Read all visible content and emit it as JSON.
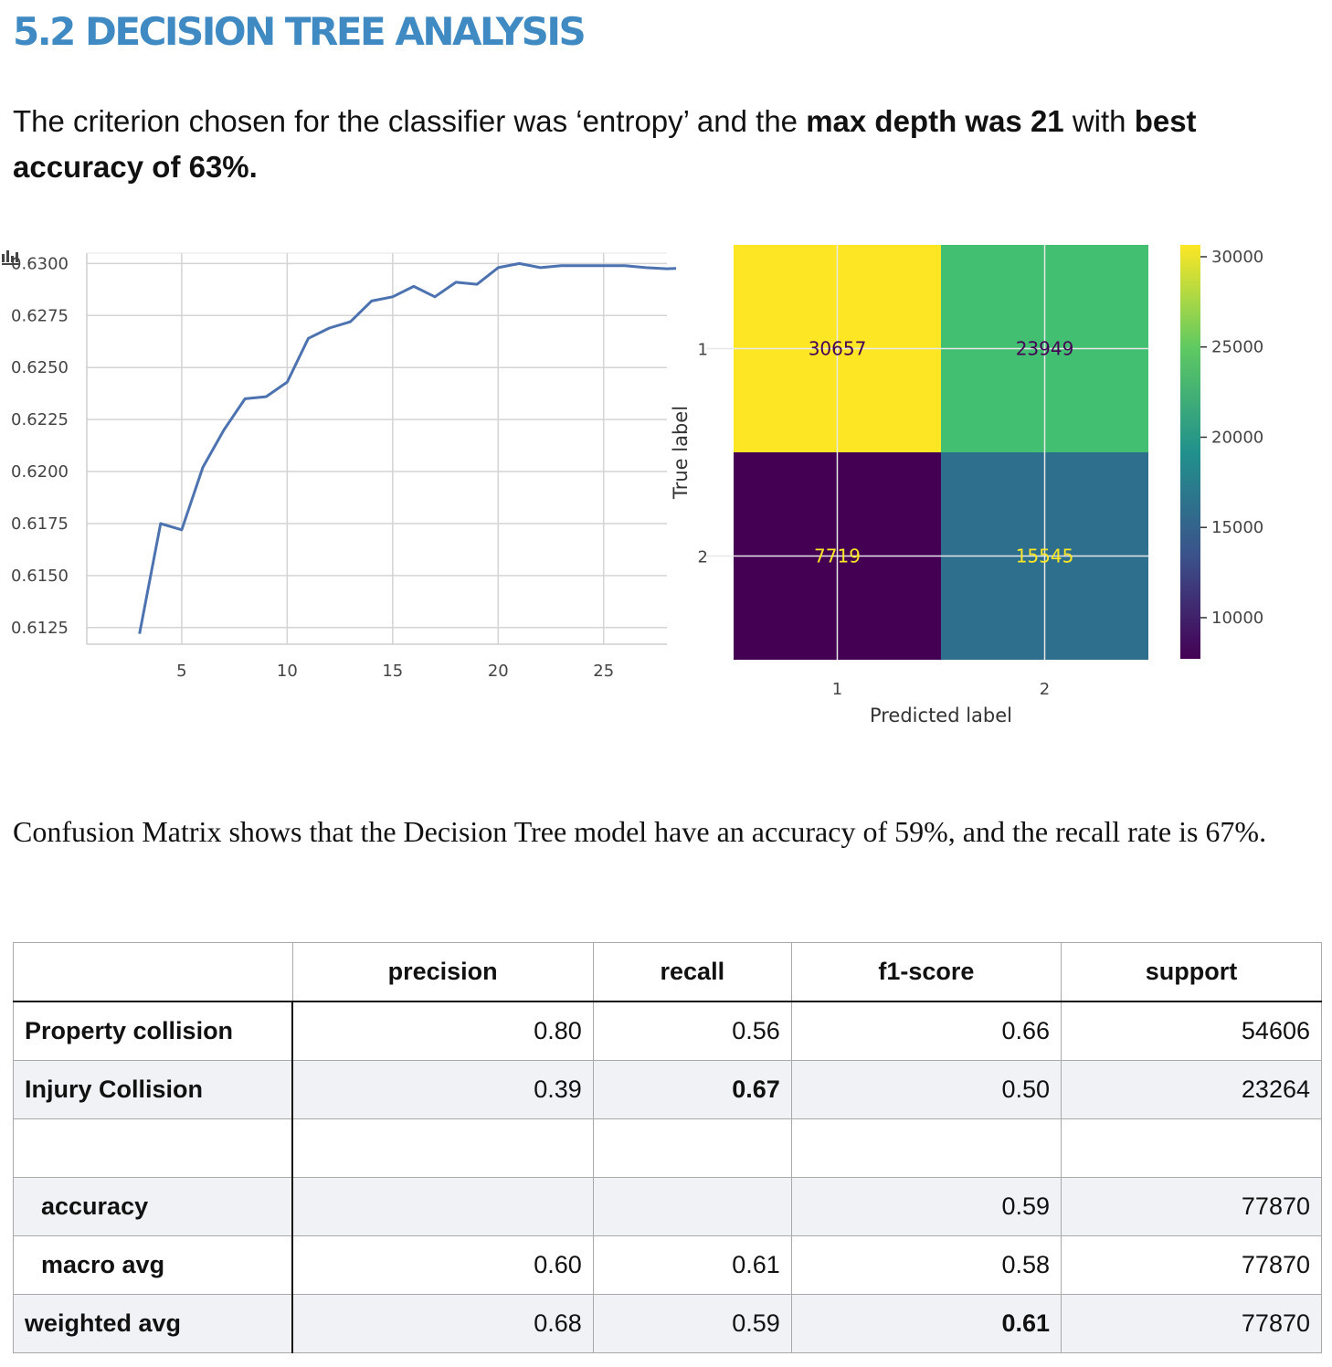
{
  "heading": "5.2 DECISION TREE ANALYSIS",
  "intro": {
    "part1": "The criterion chosen for the classifier was ‘entropy’ and the ",
    "bold1": "max depth was 21",
    "part2": " with ",
    "bold2": "best accuracy of 63%."
  },
  "chart_data": [
    {
      "type": "line",
      "x": [
        3,
        4,
        5,
        6,
        7,
        8,
        9,
        10,
        11,
        12,
        13,
        14,
        15,
        16,
        17,
        18,
        19,
        20,
        21,
        22,
        23,
        24,
        25,
        26,
        27,
        28,
        29
      ],
      "series": [
        {
          "values": [
            0.6122,
            0.6175,
            0.6172,
            0.6202,
            0.622,
            0.6235,
            0.6236,
            0.6243,
            0.6264,
            0.6269,
            0.6272,
            0.6282,
            0.6284,
            0.6289,
            0.6284,
            0.6291,
            0.629,
            0.6298,
            0.63,
            0.6298,
            0.6299,
            0.6299,
            0.6299,
            0.6299,
            0.6298,
            0.62975,
            0.62978
          ]
        }
      ],
      "x_ticks": [
        "5",
        "10",
        "15",
        "20",
        "25"
      ],
      "y_ticks": [
        "0.6125",
        "0.6150",
        "0.6175",
        "0.6200",
        "0.6225",
        "0.6250",
        "0.6275",
        "0.6300"
      ],
      "xlim": [
        0.5,
        28.0
      ],
      "ylim": [
        0.6117,
        0.6305
      ],
      "color": "#4c72b0",
      "grid": true
    },
    {
      "type": "heatmap",
      "rows": [
        "1",
        "2"
      ],
      "cols": [
        "1",
        "2"
      ],
      "values": [
        [
          30657,
          23949
        ],
        [
          7719,
          15545
        ]
      ],
      "xlabel": "Predicted label",
      "ylabel": "True label",
      "colorbar_ticks": [
        "10000",
        "15000",
        "20000",
        "25000",
        "30000"
      ],
      "colorscale": "viridis",
      "cell_colors": [
        [
          "#fde725",
          "#43bf71"
        ],
        [
          "#440154",
          "#2e6f8e"
        ]
      ],
      "text_colors": [
        [
          "#440154",
          "#440154"
        ],
        [
          "#fde725",
          "#fde725"
        ]
      ]
    }
  ],
  "summary": "Confusion Matrix shows that the Decision Tree model have an accuracy of 59%, and the recall rate is 67%.",
  "report": {
    "headers": [
      "",
      "precision",
      "recall",
      "f1-score",
      "support"
    ],
    "rows": [
      [
        "Property collision",
        "0.80",
        "0.56",
        "0.66",
        "54606"
      ],
      [
        "Injury Collision",
        "0.39",
        "0.67",
        "0.50",
        "23264"
      ],
      [
        "",
        "",
        "",
        "",
        ""
      ],
      [
        "accuracy",
        "",
        "",
        "0.59",
        "77870"
      ],
      [
        "macro avg",
        "0.60",
        "0.61",
        "0.58",
        "77870"
      ],
      [
        "weighted avg",
        "0.68",
        "0.59",
        "0.61",
        "77870"
      ]
    ]
  }
}
